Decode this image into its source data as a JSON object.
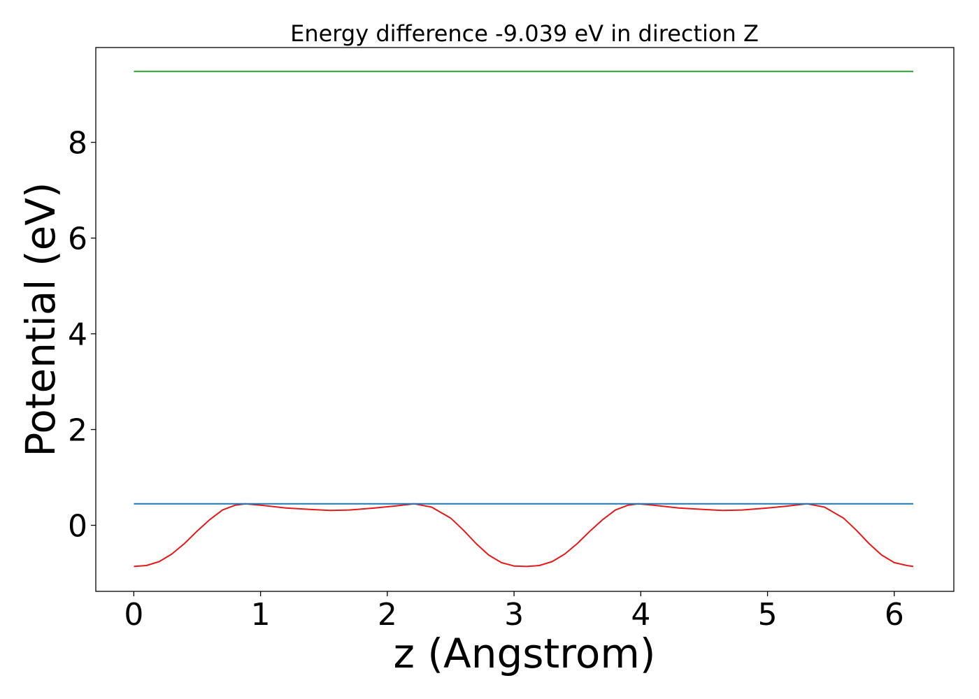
{
  "chart_data": {
    "type": "line",
    "title": "Energy difference -9.039 eV in direction Z",
    "xlabel": "z (Angstrom)",
    "ylabel": "Potential (eV)",
    "xlim": [
      -0.3,
      6.47
    ],
    "ylim": [
      -1.38,
      9.98
    ],
    "xticks": [
      0,
      1,
      2,
      3,
      4,
      5,
      6
    ],
    "yticks": [
      0,
      2,
      4,
      6,
      8
    ],
    "grid": false,
    "colors": {
      "potential": "#e31a1c",
      "flat_level": "#1f77b4",
      "upper_level": "#2ca02c"
    },
    "series": [
      {
        "color": "#e31a1c",
        "x": [
          0.0,
          0.1,
          0.2,
          0.3,
          0.4,
          0.5,
          0.6,
          0.7,
          0.8,
          0.88,
          1.0,
          1.2,
          1.4,
          1.55,
          1.7,
          1.9,
          2.05,
          2.21,
          2.35,
          2.5,
          2.6,
          2.7,
          2.8,
          2.9,
          3.0,
          3.1,
          3.2,
          3.3,
          3.4,
          3.5,
          3.6,
          3.7,
          3.8,
          3.9,
          3.98,
          4.1,
          4.3,
          4.5,
          4.65,
          4.8,
          5.0,
          5.15,
          5.31,
          5.45,
          5.6,
          5.7,
          5.8,
          5.9,
          6.0,
          6.1,
          6.15
        ],
        "y": [
          -0.86,
          -0.84,
          -0.76,
          -0.6,
          -0.38,
          -0.12,
          0.12,
          0.32,
          0.42,
          0.45,
          0.42,
          0.36,
          0.33,
          0.31,
          0.32,
          0.36,
          0.4,
          0.45,
          0.38,
          0.15,
          -0.1,
          -0.38,
          -0.62,
          -0.78,
          -0.85,
          -0.86,
          -0.84,
          -0.76,
          -0.6,
          -0.38,
          -0.12,
          0.12,
          0.32,
          0.42,
          0.45,
          0.42,
          0.36,
          0.33,
          0.31,
          0.32,
          0.36,
          0.4,
          0.45,
          0.38,
          0.15,
          -0.1,
          -0.38,
          -0.62,
          -0.78,
          -0.84,
          -0.86
        ]
      },
      {
        "color": "#1f77b4",
        "x": [
          0.0,
          6.15
        ],
        "y": [
          0.45,
          0.45
        ]
      },
      {
        "color": "#2ca02c",
        "x": [
          0.0,
          6.15
        ],
        "y": [
          9.48,
          9.48
        ]
      }
    ]
  }
}
